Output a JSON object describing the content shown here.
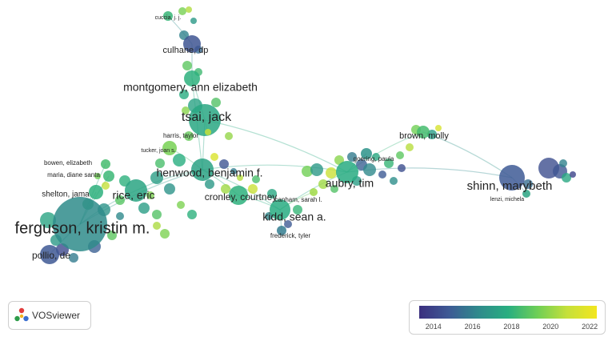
{
  "nodes": [
    {
      "id": "cuccia",
      "label": "cuccia, j. j.",
      "label_size": "small",
      "year": 2018.2
    },
    {
      "id": "culhane",
      "label": "culhane, dp",
      "label_size": "medium",
      "year": 2014.8
    },
    {
      "id": "montgomery",
      "label": "montgomery, ann elizabeth",
      "label_size": "large",
      "year": 2018.0
    },
    {
      "id": "tsai",
      "label": "tsai, jack",
      "label_size": "xlarge",
      "year": 2017.6
    },
    {
      "id": "harris",
      "label": "harris, taylor",
      "label_size": "small",
      "year": 2020.8
    },
    {
      "id": "tucker",
      "label": "tucker, joan s.",
      "label_size": "small",
      "year": 2019.5
    },
    {
      "id": "henwood",
      "label": "henwood, benjamin f.",
      "label_size": "large",
      "year": 2017.4
    },
    {
      "id": "bowen",
      "label": "bowen, elizabeth",
      "label_size": "small",
      "year": 2018.5
    },
    {
      "id": "maria",
      "label": "maria, diane santa",
      "label_size": "small",
      "year": 2018.3
    },
    {
      "id": "shelton",
      "label": "shelton, jama",
      "label_size": "small",
      "year": 2018.0
    },
    {
      "id": "rice",
      "label": "rice, eric",
      "label_size": "large",
      "year": 2017.5
    },
    {
      "id": "ferguson",
      "label": "ferguson, kristin m.",
      "label_size": "xxlarge",
      "year": 2016.5
    },
    {
      "id": "pollio",
      "label": "pollio, de",
      "label_size": "medium",
      "year": 2014.9
    },
    {
      "id": "cronley",
      "label": "cronley, courtney",
      "label_size": "medium",
      "year": 2018.0
    },
    {
      "id": "kidd",
      "label": "kidd, sean a.",
      "label_size": "large",
      "year": 2017.8
    },
    {
      "id": "frederick",
      "label": "frederick, tyler",
      "label_size": "small",
      "year": 2016.0
    },
    {
      "id": "canham",
      "label": "canham, sarah l.",
      "label_size": "small",
      "year": 2020.2
    },
    {
      "id": "aubry",
      "label": "aubry, tim",
      "label_size": "large",
      "year": 2017.8
    },
    {
      "id": "goering",
      "label": "goering, paula",
      "label_size": "small",
      "year": 2016.8
    },
    {
      "id": "brown",
      "label": "brown, molly",
      "label_size": "medium",
      "year": 2018.5
    },
    {
      "id": "shinn",
      "label": "shinn, marybeth",
      "label_size": "xlarge",
      "year": 2015.0
    },
    {
      "id": "lenzi",
      "label": "lenzi, michela",
      "label_size": "small",
      "year": 2017.5
    }
  ],
  "links": [
    [
      "cuccia",
      "culhane"
    ],
    [
      "culhane",
      "montgomery"
    ],
    [
      "montgomery",
      "tsai"
    ],
    [
      "tsai",
      "harris"
    ],
    [
      "tsai",
      "henwood"
    ],
    [
      "tsai",
      "aubry"
    ],
    [
      "henwood",
      "rice"
    ],
    [
      "henwood",
      "kidd"
    ],
    [
      "henwood",
      "cronley"
    ],
    [
      "henwood",
      "aubry"
    ],
    [
      "henwood",
      "tucker"
    ],
    [
      "rice",
      "ferguson"
    ],
    [
      "ferguson",
      "pollio"
    ],
    [
      "ferguson",
      "shelton"
    ],
    [
      "ferguson",
      "bowen"
    ],
    [
      "ferguson",
      "maria"
    ],
    [
      "ferguson",
      "henwood"
    ],
    [
      "kidd",
      "frederick"
    ],
    [
      "kidd",
      "aubry"
    ],
    [
      "aubry",
      "goering"
    ],
    [
      "aubry",
      "brown"
    ],
    [
      "aubry",
      "shinn"
    ],
    [
      "brown",
      "shinn"
    ],
    [
      "shinn",
      "lenzi"
    ],
    [
      "canham",
      "kidd"
    ],
    [
      "cronley",
      "kidd"
    ],
    [
      "montgomery",
      "henwood"
    ]
  ],
  "color_scale": {
    "min_year": 2013.5,
    "max_year": 2022.3,
    "stops": [
      "#3b2f7f",
      "#3e5a95",
      "#2f8a8c",
      "#28ae80",
      "#6fcf56",
      "#c6e03a",
      "#f3e61e"
    ]
  },
  "legend": {
    "ticks": [
      "2014",
      "2016",
      "2018",
      "2020",
      "2022"
    ]
  },
  "logo": {
    "text": "VOSviewer",
    "icon": "vosviewer-logo-icon",
    "colors": [
      "#e23c3c",
      "#2e9c4a",
      "#3a6fd0",
      "#f2b320"
    ]
  }
}
